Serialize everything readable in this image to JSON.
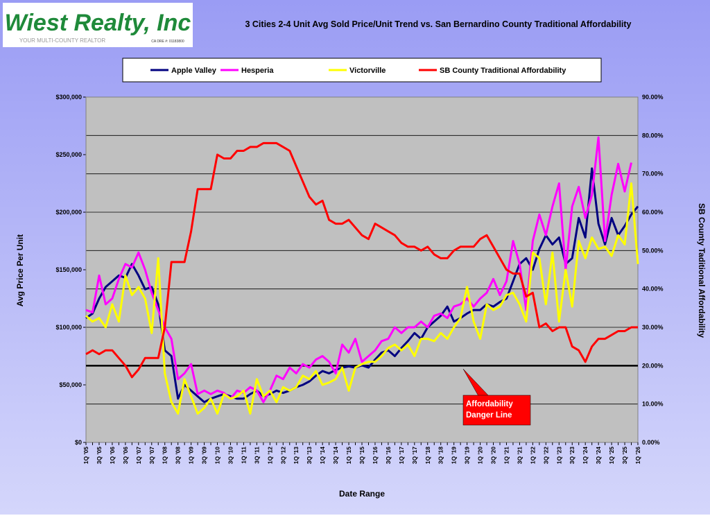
{
  "logo": {
    "name": "Wiest Realty, Inc",
    "tagline": "YOUR MULTI-COUNTY REALTOR",
    "license": "CA DRE #: 01183800"
  },
  "chart_data": {
    "type": "line",
    "title": "3  Cities 2-4 Unit Avg  Sold Price/Unit Trend vs. San Bernardino County  Traditional Affordability",
    "xlabel": "Date Range",
    "ylabel": "Avg Price Per Unit",
    "y2label": "SB County  Taditional  Affordability",
    "categories": [
      "1Q '05",
      null,
      "3Q '05",
      null,
      "1Q '06",
      null,
      "3Q '06",
      null,
      "1Q '07",
      null,
      "3Q '07",
      null,
      "1Q '08",
      null,
      "3Q '08",
      null,
      "1Q '09",
      null,
      "3Q '09",
      null,
      "1Q '10",
      null,
      "3Q '10",
      null,
      "1Q '11",
      null,
      "3Q '11",
      null,
      "1Q '12",
      null,
      "3Q '12",
      null,
      "1Q '13",
      null,
      "3Q '13",
      null,
      "1Q '14",
      null,
      "3Q '14",
      null,
      "1Q '15",
      null,
      "3Q '15",
      null,
      "1Q '16",
      null,
      "3Q '16",
      null,
      "1Q '17",
      null,
      "3Q '17",
      null,
      "1Q '18",
      null,
      "3Q '18",
      null,
      "1Q '19",
      null,
      "3Q '19",
      null,
      "1Q '20",
      null,
      "3Q '20",
      null,
      "1Q '21",
      null,
      "3Q '21",
      null,
      "1Q '22",
      null,
      "3Q '22",
      null,
      "1Q '23",
      null,
      "3Q '23",
      null,
      "1Q '24",
      null,
      "3Q '24",
      null,
      "1Q '25",
      null,
      "3Q '25",
      null,
      "1Q '26"
    ],
    "series": [
      {
        "name": "Apple Valley",
        "color": "#000080",
        "values": [
          108000,
          112000,
          125000,
          135000,
          140000,
          145000,
          143000,
          155000,
          145000,
          133000,
          135000,
          120000,
          80000,
          75000,
          38000,
          50000,
          45000,
          40000,
          35000,
          38000,
          40000,
          42000,
          40000,
          38000,
          38000,
          42000,
          45000,
          40000,
          42000,
          45000,
          43000,
          45000,
          48000,
          50000,
          53000,
          58000,
          62000,
          60000,
          63000,
          65000,
          66000,
          65000,
          67000,
          65000,
          72000,
          78000,
          80000,
          75000,
          82000,
          88000,
          95000,
          90000,
          100000,
          105000,
          110000,
          118000,
          105000,
          108000,
          112000,
          115000,
          115000,
          120000,
          118000,
          122000,
          125000,
          140000,
          155000,
          160000,
          150000,
          168000,
          180000,
          172000,
          178000,
          155000,
          160000,
          195000,
          178000,
          238000,
          190000,
          172000,
          195000,
          180000,
          188000,
          198000,
          205000
        ]
      },
      {
        "name": "Hesperia",
        "color": "#ff00ff",
        "values": [
          115000,
          113000,
          145000,
          120000,
          125000,
          142000,
          155000,
          152000,
          165000,
          150000,
          130000,
          115000,
          100000,
          90000,
          55000,
          60000,
          68000,
          42000,
          45000,
          42000,
          45000,
          43000,
          38000,
          45000,
          43000,
          48000,
          45000,
          35000,
          45000,
          58000,
          55000,
          65000,
          60000,
          68000,
          65000,
          72000,
          75000,
          70000,
          60000,
          85000,
          78000,
          90000,
          70000,
          75000,
          80000,
          88000,
          90000,
          100000,
          95000,
          100000,
          100000,
          105000,
          100000,
          110000,
          112000,
          108000,
          118000,
          120000,
          125000,
          118000,
          125000,
          130000,
          142000,
          128000,
          140000,
          175000,
          155000,
          115000,
          175000,
          198000,
          180000,
          205000,
          225000,
          150000,
          205000,
          222000,
          195000,
          215000,
          265000,
          175000,
          215000,
          242000,
          218000,
          243000,
          null
        ]
      },
      {
        "name": "Victorville",
        "color": "#ffff00",
        "values": [
          110000,
          105000,
          108000,
          100000,
          120000,
          105000,
          145000,
          128000,
          135000,
          125000,
          95000,
          160000,
          60000,
          35000,
          25000,
          55000,
          40000,
          25000,
          30000,
          38000,
          25000,
          42000,
          38000,
          40000,
          45000,
          25000,
          55000,
          40000,
          45000,
          35000,
          48000,
          45000,
          48000,
          58000,
          55000,
          62000,
          50000,
          52000,
          55000,
          65000,
          45000,
          65000,
          68000,
          70000,
          70000,
          75000,
          82000,
          85000,
          80000,
          85000,
          75000,
          90000,
          90000,
          88000,
          95000,
          90000,
          100000,
          108000,
          135000,
          105000,
          90000,
          120000,
          115000,
          118000,
          128000,
          130000,
          120000,
          105000,
          165000,
          160000,
          120000,
          165000,
          105000,
          150000,
          118000,
          175000,
          160000,
          178000,
          168000,
          170000,
          162000,
          180000,
          172000,
          225000,
          155000
        ]
      },
      {
        "name": "SB County Traditional Affordability",
        "color": "#ff0000",
        "axis": "y2",
        "values": [
          23,
          24,
          23,
          24,
          24,
          22,
          20,
          17,
          19,
          22,
          22,
          22,
          30,
          47,
          47,
          47,
          55,
          66,
          66,
          66,
          75,
          74,
          74,
          76,
          76,
          77,
          77,
          78,
          78,
          78,
          77,
          76,
          72,
          68,
          64,
          62,
          63,
          58,
          57,
          57,
          58,
          56,
          54,
          53,
          57,
          56,
          55,
          54,
          52,
          51,
          51,
          50,
          51,
          49,
          48,
          48,
          50,
          51,
          51,
          51,
          53,
          54,
          51,
          48,
          45,
          44,
          44,
          38,
          39,
          30,
          31,
          29,
          30,
          30,
          25,
          24,
          21,
          25,
          27,
          27,
          28,
          29,
          29,
          30,
          30
        ]
      }
    ],
    "ylim": [
      0,
      300000
    ],
    "yticks": [
      {
        "value": 0,
        "label": "$0"
      },
      {
        "value": 50000,
        "label": "$50,000"
      },
      {
        "value": 100000,
        "label": "$100,000"
      },
      {
        "value": 150000,
        "label": "$150,000"
      },
      {
        "value": 200000,
        "label": "$200,000"
      },
      {
        "value": 250000,
        "label": "$250,000"
      },
      {
        "value": 300000,
        "label": "$300,000"
      }
    ],
    "y2lim": [
      0,
      90
    ],
    "y2ticks": [
      {
        "value": 0,
        "label": "0.00%"
      },
      {
        "value": 10,
        "label": "10.00%"
      },
      {
        "value": 20,
        "label": "20.00%"
      },
      {
        "value": 30,
        "label": "30.00%"
      },
      {
        "value": 40,
        "label": "40.00%"
      },
      {
        "value": 50,
        "label": "50.00%"
      },
      {
        "value": 60,
        "label": "60.00%"
      },
      {
        "value": 70,
        "label": "70.00%"
      },
      {
        "value": 80,
        "label": "80.00%"
      },
      {
        "value": 90,
        "label": "90.00%"
      }
    ],
    "grid": true,
    "reference_line": {
      "value": 20,
      "axis": "y2",
      "color": "#000000"
    },
    "annotation": {
      "lines": [
        "Affordability",
        "Danger Line"
      ],
      "color": "#ff0000"
    },
    "legend": "top"
  }
}
